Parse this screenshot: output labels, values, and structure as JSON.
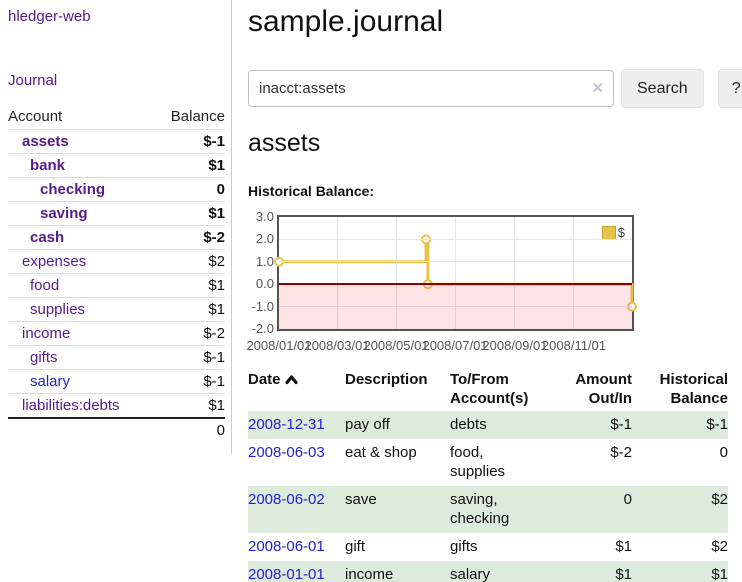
{
  "sidebar": {
    "app_title": "hledger-web",
    "journal_link": "Journal",
    "accounts": {
      "headers": {
        "account": "Account",
        "balance": "Balance"
      },
      "rows": [
        {
          "name": "assets",
          "balance": "$-1"
        },
        {
          "name": "bank",
          "balance": "$1"
        },
        {
          "name": "checking",
          "balance": "0"
        },
        {
          "name": "saving",
          "balance": "$1"
        },
        {
          "name": "cash",
          "balance": "$-2"
        },
        {
          "name": "expenses",
          "balance": "$2"
        },
        {
          "name": "food",
          "balance": "$1"
        },
        {
          "name": "supplies",
          "balance": "$1"
        },
        {
          "name": "income",
          "balance": "$-2"
        },
        {
          "name": "gifts",
          "balance": "$-1"
        },
        {
          "name": "salary",
          "balance": "$-1"
        },
        {
          "name": "liabilities:debts",
          "balance": "$1"
        }
      ],
      "total": "0"
    }
  },
  "main": {
    "title": "sample.journal",
    "search": {
      "value": "inacct:assets",
      "clear_icon": "✕",
      "search_button": "Search",
      "help_button": "?"
    },
    "account_heading": "assets",
    "section_label": "Historical Balance:"
  },
  "chart_data": {
    "type": "line",
    "step": true,
    "title": "Historical Balance of assets",
    "x_range": [
      "2008-01-01",
      "2008-12-31"
    ],
    "ylim": [
      -2,
      3
    ],
    "grid": true,
    "yticks": [
      {
        "value": 3,
        "label": "3.0"
      },
      {
        "value": 2,
        "label": "2.0"
      },
      {
        "value": 1,
        "label": "1.0"
      },
      {
        "value": 0,
        "label": "0.0"
      },
      {
        "value": -1,
        "label": "-1.0"
      },
      {
        "value": -2,
        "label": "-2.0"
      }
    ],
    "xticks": [
      {
        "date": "2008-01-01",
        "label": "2008/01/01"
      },
      {
        "date": "2008-03-01",
        "label": "2008/03/01"
      },
      {
        "date": "2008-05-01",
        "label": "2008/05/01"
      },
      {
        "date": "2008-07-01",
        "label": "2008/07/01"
      },
      {
        "date": "2008-09-01",
        "label": "2008/09/01"
      },
      {
        "date": "2008-11-01",
        "label": "2008/11/01"
      }
    ],
    "series": [
      {
        "name": "$",
        "color": "#E8C34A",
        "points": [
          [
            "2008-01-01",
            1
          ],
          [
            "2008-06-01",
            2
          ],
          [
            "2008-06-03",
            0
          ],
          [
            "2008-12-31",
            -1
          ]
        ]
      }
    ],
    "legend": {
      "label": "$",
      "position": "top-right"
    },
    "marker_fill": "#FFFFFF",
    "below_zero_fill": "rgba(244,108,108,0.18)",
    "zero_line_color": "#8B0000",
    "grid_color": "#E5E5E5",
    "border_color": "#545454"
  },
  "register_table": {
    "headers": {
      "date": "Date",
      "description": "Description",
      "accounts": "To/From Account(s)",
      "amount": "Amount Out/In",
      "balance": "Historical Balance"
    },
    "rows": [
      {
        "date": "2008-12-31",
        "description": "pay off",
        "accounts": "debts",
        "amount": "$-1",
        "balance": "$-1"
      },
      {
        "date": "2008-06-03",
        "description": "eat & shop",
        "accounts": "food, supplies",
        "amount": "$-2",
        "balance": "0"
      },
      {
        "date": "2008-06-02",
        "description": "save",
        "accounts": "saving, checking",
        "amount": "0",
        "balance": "$2"
      },
      {
        "date": "2008-06-01",
        "description": "gift",
        "accounts": "gifts",
        "amount": "$1",
        "balance": "$2"
      },
      {
        "date": "2008-01-01",
        "description": "income",
        "accounts": "salary",
        "amount": "$1",
        "balance": "$1"
      }
    ]
  },
  "colors": {
    "link_purple": "#551A8B",
    "link_blue": "#2222CC",
    "negative": "#8B0000",
    "negative_muted": "#BE6A66",
    "row_green": "#DDEBDD",
    "series_gold": "#E8C34A"
  }
}
